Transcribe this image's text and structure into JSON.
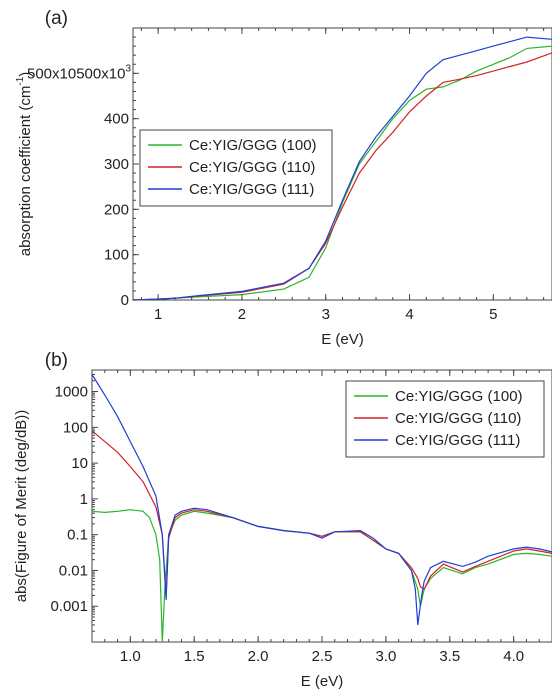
{
  "chart_data": [
    {
      "panel_label": "(a)",
      "type": "line",
      "xlabel": "E (eV)",
      "ylabel": "absorption coefficient (cm",
      "ylabel_sup": "-1",
      "ylabel_close": ")",
      "xlim": [
        0.7,
        5.7
      ],
      "ylim": [
        0,
        600000
      ],
      "scale": "linear",
      "grid": false,
      "legend_position": "center-left",
      "xticks": [
        {
          "v": 1,
          "label": "1"
        },
        {
          "v": 2,
          "label": "2"
        },
        {
          "v": 3,
          "label": "3"
        },
        {
          "v": 4,
          "label": "4"
        },
        {
          "v": 5,
          "label": "5"
        }
      ],
      "yticks": [
        {
          "v": 0,
          "label": "0"
        },
        {
          "v": 100000,
          "label": "100"
        },
        {
          "v": 200000,
          "label": "200"
        },
        {
          "v": 300000,
          "label": "300"
        },
        {
          "v": 400000,
          "label": "400"
        },
        {
          "v": 500000,
          "label": "500x10",
          "sup": "3"
        }
      ],
      "series": [
        {
          "name": "Ce:YIG/GGG (100)",
          "color": "#2bb52b",
          "x": [
            0.7,
            1.0,
            1.2,
            1.5,
            2.0,
            2.5,
            2.8,
            3.0,
            3.2,
            3.4,
            3.6,
            3.8,
            4.0,
            4.2,
            4.4,
            4.6,
            4.8,
            5.0,
            5.2,
            5.4,
            5.7
          ],
          "y": [
            0,
            2000,
            4000,
            7000,
            12000,
            24000,
            50000,
            115000,
            215000,
            300000,
            350000,
            400000,
            440000,
            465000,
            470000,
            485000,
            505000,
            520000,
            535000,
            555000,
            560000
          ]
        },
        {
          "name": "Ce:YIG/GGG (110)",
          "color": "#d42222",
          "x": [
            0.7,
            1.0,
            1.2,
            1.5,
            2.0,
            2.5,
            2.8,
            3.0,
            3.2,
            3.4,
            3.6,
            3.8,
            4.0,
            4.2,
            4.4,
            4.6,
            4.8,
            5.0,
            5.2,
            5.4,
            5.7
          ],
          "y": [
            0,
            2000,
            4000,
            9000,
            17000,
            35000,
            70000,
            125000,
            205000,
            280000,
            330000,
            370000,
            415000,
            450000,
            480000,
            487000,
            495000,
            505000,
            515000,
            525000,
            545000
          ]
        },
        {
          "name": "Ce:YIG/GGG (111)",
          "color": "#1f3fd6",
          "x": [
            0.7,
            1.0,
            1.2,
            1.5,
            2.0,
            2.5,
            2.8,
            3.0,
            3.2,
            3.4,
            3.6,
            3.8,
            4.0,
            4.2,
            4.4,
            4.6,
            4.8,
            5.0,
            5.2,
            5.4,
            5.7
          ],
          "y": [
            0,
            2000,
            4000,
            10000,
            19000,
            37000,
            70000,
            130000,
            220000,
            305000,
            360000,
            405000,
            450000,
            500000,
            530000,
            540000,
            550000,
            560000,
            570000,
            580000,
            575000
          ]
        }
      ]
    },
    {
      "panel_label": "(b)",
      "type": "line",
      "xlabel": "E (eV)",
      "ylabel": "abs(Figure of Merit (deg/dB))",
      "xlim": [
        0.7,
        4.3
      ],
      "ylim": [
        0.0001,
        4000
      ],
      "scale": "log",
      "grid": false,
      "legend_position": "top-right",
      "xticks": [
        {
          "v": 1.0,
          "label": "1.0"
        },
        {
          "v": 1.5,
          "label": "1.5"
        },
        {
          "v": 2.0,
          "label": "2.0"
        },
        {
          "v": 2.5,
          "label": "2.5"
        },
        {
          "v": 3.0,
          "label": "3.0"
        },
        {
          "v": 3.5,
          "label": "3.5"
        },
        {
          "v": 4.0,
          "label": "4.0"
        }
      ],
      "yticks": [
        {
          "v": 0.001,
          "label": "0.001"
        },
        {
          "v": 0.01,
          "label": "0.01"
        },
        {
          "v": 0.1,
          "label": "0.1"
        },
        {
          "v": 1,
          "label": "1"
        },
        {
          "v": 10,
          "label": "10"
        },
        {
          "v": 100,
          "label": "100"
        },
        {
          "v": 1000,
          "label": "1000"
        }
      ],
      "series": [
        {
          "name": "Ce:YIG/GGG (100)",
          "color": "#2bb52b",
          "x": [
            0.7,
            0.8,
            0.9,
            1.0,
            1.1,
            1.15,
            1.2,
            1.23,
            1.25,
            1.27,
            1.3,
            1.35,
            1.4,
            1.5,
            1.6,
            1.8,
            2.0,
            2.2,
            2.4,
            2.5,
            2.6,
            2.8,
            2.9,
            3.0,
            3.1,
            3.2,
            3.25,
            3.27,
            3.3,
            3.35,
            3.45,
            3.6,
            3.7,
            3.8,
            4.0,
            4.1,
            4.2,
            4.3
          ],
          "y": [
            0.45,
            0.42,
            0.45,
            0.5,
            0.45,
            0.3,
            0.1,
            0.02,
            0.0001,
            0.003,
            0.1,
            0.25,
            0.35,
            0.45,
            0.4,
            0.3,
            0.17,
            0.13,
            0.11,
            0.09,
            0.12,
            0.12,
            0.07,
            0.04,
            0.03,
            0.01,
            0.003,
            0.001,
            0.003,
            0.006,
            0.012,
            0.008,
            0.012,
            0.015,
            0.028,
            0.03,
            0.028,
            0.025
          ]
        },
        {
          "name": "Ce:YIG/GGG (110)",
          "color": "#d42222",
          "x": [
            0.7,
            0.8,
            0.9,
            1.0,
            1.1,
            1.2,
            1.25,
            1.28,
            1.3,
            1.35,
            1.4,
            1.5,
            1.6,
            1.8,
            2.0,
            2.2,
            2.4,
            2.5,
            2.6,
            2.8,
            2.9,
            3.0,
            3.1,
            3.2,
            3.25,
            3.27,
            3.3,
            3.35,
            3.45,
            3.6,
            3.7,
            3.8,
            4.0,
            4.1,
            4.2,
            4.3
          ],
          "y": [
            80,
            40,
            20,
            8,
            3,
            0.6,
            0.1,
            0.002,
            0.08,
            0.3,
            0.4,
            0.5,
            0.45,
            0.3,
            0.17,
            0.13,
            0.11,
            0.09,
            0.12,
            0.12,
            0.07,
            0.04,
            0.03,
            0.012,
            0.006,
            0.0035,
            0.003,
            0.007,
            0.015,
            0.009,
            0.013,
            0.018,
            0.035,
            0.04,
            0.035,
            0.03
          ]
        },
        {
          "name": "Ce:YIG/GGG (111)",
          "color": "#1f3fd6",
          "x": [
            0.7,
            0.8,
            0.9,
            1.0,
            1.1,
            1.2,
            1.25,
            1.28,
            1.3,
            1.35,
            1.4,
            1.5,
            1.6,
            1.8,
            2.0,
            2.2,
            2.4,
            2.5,
            2.6,
            2.8,
            2.9,
            3.0,
            3.1,
            3.2,
            3.23,
            3.25,
            3.28,
            3.3,
            3.35,
            3.45,
            3.6,
            3.7,
            3.8,
            4.0,
            4.1,
            4.2,
            4.3
          ],
          "y": [
            3000,
            800,
            200,
            40,
            8,
            1.2,
            0.1,
            0.0015,
            0.1,
            0.35,
            0.45,
            0.55,
            0.5,
            0.3,
            0.17,
            0.13,
            0.11,
            0.08,
            0.12,
            0.13,
            0.08,
            0.04,
            0.03,
            0.01,
            0.003,
            0.0003,
            0.002,
            0.005,
            0.012,
            0.018,
            0.013,
            0.017,
            0.025,
            0.04,
            0.045,
            0.04,
            0.033
          ]
        }
      ]
    }
  ]
}
